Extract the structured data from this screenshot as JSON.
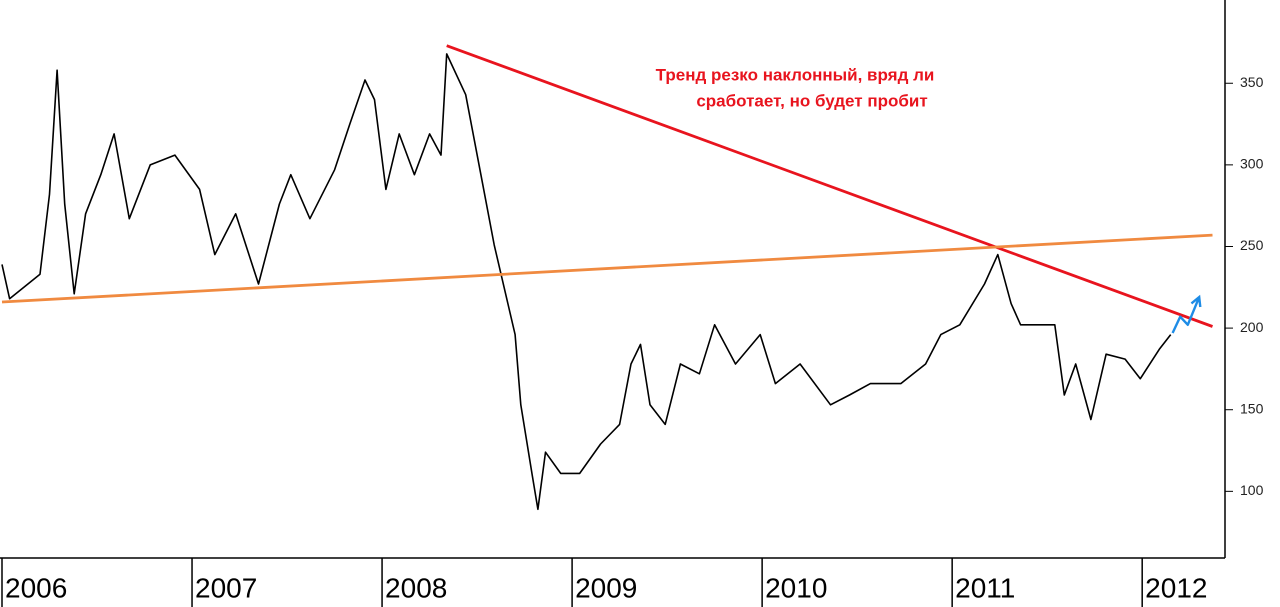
{
  "chart_data": {
    "type": "line",
    "annotation": [
      "Тренд резко наклонный, вряд ли",
      "сработает, но будет пробит"
    ],
    "annotation_color": "#e8141e",
    "xlim": [
      2006,
      2012.42
    ],
    "xticks": [
      2006,
      2007,
      2008,
      2009,
      2010,
      2011,
      2012
    ],
    "ylim": [
      61,
      401
    ],
    "yticks": [
      100,
      150,
      200,
      250,
      300,
      350
    ],
    "y_axis_side": "right",
    "series": [
      {
        "color": "#000000",
        "width": 1.6,
        "x": [
          2006.0,
          2006.04,
          2006.2,
          2006.25,
          2006.29,
          2006.33,
          2006.38,
          2006.44,
          2006.52,
          2006.59,
          2006.67,
          2006.78,
          2006.91,
          2007.04,
          2007.12,
          2007.23,
          2007.35,
          2007.46,
          2007.52,
          2007.62,
          2007.75,
          2007.83,
          2007.91,
          2007.96,
          2008.02,
          2008.09,
          2008.17,
          2008.25,
          2008.31,
          2008.34,
          2008.44,
          2008.52,
          2008.59,
          2008.65,
          2008.7,
          2008.73,
          2008.79,
          2008.82,
          2008.86,
          2008.94,
          2009.04,
          2009.15,
          2009.25,
          2009.31,
          2009.36,
          2009.41,
          2009.49,
          2009.57,
          2009.67,
          2009.75,
          2009.86,
          2009.99,
          2010.07,
          2010.2,
          2010.36,
          2010.46,
          2010.57,
          2010.73,
          2010.86,
          2010.94,
          2011.04,
          2011.17,
          2011.24,
          2011.31,
          2011.36,
          2011.46,
          2011.54,
          2011.59,
          2011.65,
          2011.73,
          2011.81,
          2011.91,
          2011.99,
          2012.09,
          2012.15
        ],
        "values": [
          239,
          218,
          233,
          282,
          358,
          276,
          221,
          270,
          294,
          319,
          267,
          300,
          306,
          285,
          245,
          270,
          227,
          276,
          294,
          267,
          297,
          325,
          352,
          340,
          285,
          319,
          294,
          319,
          306,
          368,
          343,
          294,
          251,
          221,
          196,
          153,
          110,
          89,
          124,
          111,
          111,
          129,
          141,
          178,
          190,
          153,
          141,
          178,
          172,
          202,
          178,
          196,
          166,
          178,
          153,
          159,
          166,
          166,
          178,
          196,
          202,
          227,
          245,
          215,
          202,
          202,
          202,
          159,
          178,
          144,
          184,
          181,
          169,
          187,
          196
        ]
      },
      {
        "color": "#e8141e",
        "width": 2.8,
        "x": [
          2008.34,
          2012.37
        ],
        "values": [
          373,
          201
        ]
      },
      {
        "color": "#f08a40",
        "width": 2.8,
        "x": [
          2006.0,
          2012.37
        ],
        "values": [
          216,
          257
        ]
      },
      {
        "color": "#1e8ce6",
        "width": 2.4,
        "arrow": true,
        "x": [
          2012.16,
          2012.2,
          2012.24,
          2012.3
        ],
        "values": [
          197,
          207,
          202,
          219
        ]
      }
    ]
  }
}
